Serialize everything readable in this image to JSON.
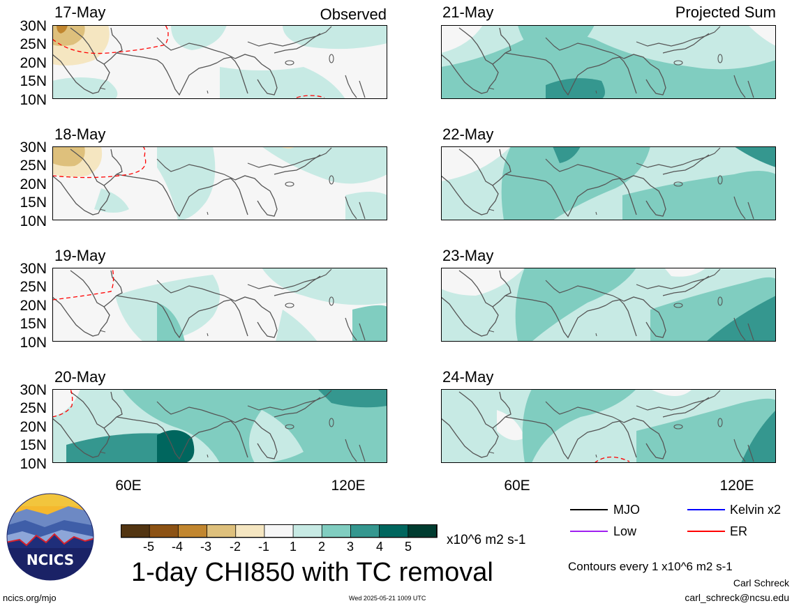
{
  "panels": {
    "left_tag": "Observed",
    "right_tag": "Projected Sum",
    "left_dates": [
      "17-May",
      "18-May",
      "19-May",
      "20-May"
    ],
    "right_dates": [
      "21-May",
      "22-May",
      "23-May",
      "24-May"
    ]
  },
  "axes": {
    "lat_labels": [
      "30N",
      "25N",
      "20N",
      "15N",
      "10N"
    ],
    "lon_labels": [
      "60E",
      "120E"
    ]
  },
  "colorbar": {
    "ticks": [
      "-5",
      "-4",
      "-3",
      "-2",
      "-1",
      "1",
      "2",
      "3",
      "4",
      "5"
    ],
    "colors": [
      "#523512",
      "#8c5214",
      "#c1862f",
      "#dec07c",
      "#f5e6c1",
      "#f6f6f6",
      "#c7eae4",
      "#80cdc0",
      "#35978f",
      "#00665e",
      "#003c30"
    ],
    "units": "x10^6 m2 s-1"
  },
  "title": "1-day CHI850 with TC removal",
  "legend": {
    "items": [
      {
        "label": "MJO",
        "color": "#000000"
      },
      {
        "label": "Kelvin x2",
        "color": "#0000ff"
      },
      {
        "label": "Low",
        "color": "#a020f0"
      },
      {
        "label": "ER",
        "color": "#ff0000"
      }
    ],
    "contour_note": "Contours every 1 x10^6 m2 s-1"
  },
  "credits": {
    "author": "Carl Schreck",
    "email": "carl_schreck@ncsu.edu",
    "site": "ncics.org/mjo",
    "timestamp": "Wed 2025-05-21 1009 UTC",
    "logo_text": "NCICS"
  }
}
